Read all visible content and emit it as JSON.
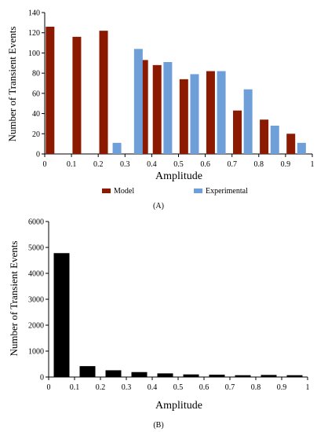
{
  "chart_data": [
    {
      "type": "bar",
      "panel_label": "(A)",
      "xlabel": "Amplitude",
      "ylabel": "Number of Transient Events",
      "xlim": [
        0,
        1
      ],
      "ylim": [
        0,
        140
      ],
      "yticks": [
        0,
        20,
        40,
        60,
        80,
        100,
        120,
        140
      ],
      "xticks": [
        "0",
        "0.1",
        "0.2",
        "0.3",
        "0.4",
        "0.5",
        "0.6",
        "0.7",
        "0.8",
        "0.9",
        "1"
      ],
      "legend_position": "bottom",
      "series": [
        {
          "name": "Model",
          "color": "#8b1a00",
          "x": [
            0.02,
            0.12,
            0.22,
            0.37,
            0.42,
            0.52,
            0.62,
            0.72,
            0.82,
            0.92
          ],
          "values": [
            126,
            116,
            122,
            93,
            88,
            74,
            82,
            43,
            34,
            20
          ]
        },
        {
          "name": "Experimental",
          "color": "#6f9fd8",
          "x": [
            0.27,
            0.35,
            0.46,
            0.56,
            0.66,
            0.76,
            0.86,
            0.96
          ],
          "values": [
            11,
            104,
            91,
            79,
            82,
            64,
            28,
            11
          ]
        }
      ]
    },
    {
      "type": "bar",
      "panel_label": "(B)",
      "xlabel": "Amplitude",
      "ylabel": "Number of Transient Events",
      "xlim": [
        0,
        1
      ],
      "ylim": [
        0,
        6000
      ],
      "yticks": [
        0,
        1000,
        2000,
        3000,
        4000,
        5000,
        6000
      ],
      "xticks": [
        "0",
        "0.1",
        "0.2",
        "0.3",
        "0.4",
        "0.5",
        "0.6",
        "0.7",
        "0.8",
        "0.9",
        "1"
      ],
      "series": [
        {
          "color": "#000000",
          "x": [
            0.05,
            0.15,
            0.25,
            0.35,
            0.45,
            0.55,
            0.65,
            0.75,
            0.85,
            0.95
          ],
          "values": [
            4780,
            420,
            260,
            190,
            140,
            100,
            90,
            70,
            80,
            70
          ]
        }
      ]
    }
  ]
}
